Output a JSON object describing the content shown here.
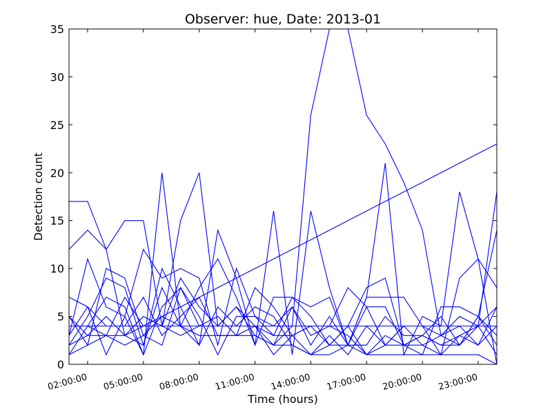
{
  "chart_data": {
    "type": "line",
    "title": "Observer: hue, Date: 2013-01",
    "xlabel": "Time (hours)",
    "ylabel": "Detection count",
    "xlim": [
      1,
      24
    ],
    "ylim": [
      0,
      35
    ],
    "yticks": [
      0,
      5,
      10,
      15,
      20,
      25,
      30,
      35
    ],
    "xticks": [
      {
        "x": 2,
        "label": "02:00:00"
      },
      {
        "x": 5,
        "label": "05:00:00"
      },
      {
        "x": 8,
        "label": "08:00:00"
      },
      {
        "x": 11,
        "label": "11:00:00"
      },
      {
        "x": 14,
        "label": "14:00:00"
      },
      {
        "x": 17,
        "label": "17:00:00"
      },
      {
        "x": 20,
        "label": "20:00:00"
      },
      {
        "x": 23,
        "label": "23:00:00"
      }
    ],
    "line_color": "#0000ff",
    "grid": false,
    "legend": "none",
    "series": [
      {
        "x": [
          1,
          2,
          3,
          4,
          5,
          6,
          7,
          8,
          9,
          10,
          11,
          12,
          13,
          14,
          15,
          16,
          17,
          18,
          19,
          20,
          21,
          22,
          23,
          24
        ],
        "y": [
          17,
          17,
          12,
          15,
          15,
          4,
          15,
          20,
          4,
          6,
          3,
          2,
          4,
          26,
          35,
          35,
          26,
          23,
          19,
          14,
          3,
          5,
          4,
          18
        ]
      },
      {
        "x": [
          1,
          2,
          3,
          4,
          5,
          6,
          7,
          8,
          9,
          10,
          11,
          12,
          13,
          14,
          15,
          16,
          17,
          18,
          19,
          20,
          21,
          22,
          23,
          24
        ],
        "y": [
          12,
          14,
          12,
          3,
          2,
          8,
          4,
          2,
          14,
          9,
          2,
          16,
          1,
          16,
          8,
          2,
          7,
          21,
          1,
          5,
          4,
          18,
          11,
          0
        ]
      },
      {
        "x": [
          1,
          2,
          3,
          4,
          5,
          6,
          7,
          8,
          9,
          10,
          11,
          12,
          13,
          14,
          15,
          16,
          17,
          18,
          19,
          20,
          21,
          22,
          23,
          24
        ],
        "y": [
          7,
          6,
          1,
          5,
          1,
          20,
          4,
          8,
          11,
          7,
          2,
          7,
          7,
          6,
          7,
          2,
          7,
          7,
          7,
          4,
          1,
          9,
          11,
          8
        ]
      },
      {
        "x": [
          1,
          2,
          3,
          4,
          5,
          6,
          7,
          8,
          9,
          10,
          11,
          12,
          13,
          14,
          15,
          16,
          17,
          18,
          19,
          20,
          21,
          22,
          23,
          24
        ],
        "y": [
          3,
          11,
          6,
          5,
          12,
          9,
          10,
          9,
          2,
          10,
          5,
          4,
          6,
          2,
          5,
          2,
          6,
          6,
          2,
          1,
          6,
          6,
          5,
          14
        ]
      },
      {
        "x": [
          1,
          2,
          3,
          4,
          5,
          6,
          7,
          8,
          9,
          10,
          11,
          12,
          13,
          14,
          15,
          16,
          17,
          18,
          19,
          20,
          21,
          22,
          23,
          24
        ],
        "y": [
          5,
          2,
          10,
          9,
          3,
          2,
          8,
          4,
          5,
          3,
          8,
          6,
          3,
          4,
          2,
          4,
          8,
          9,
          2,
          3,
          2,
          3,
          2,
          6
        ]
      },
      {
        "x": [
          1,
          2,
          3,
          4,
          5,
          6,
          7,
          8,
          9,
          10,
          11,
          12,
          13,
          14,
          15,
          16,
          17,
          18,
          19,
          20,
          21,
          22,
          23,
          24
        ],
        "y": [
          2,
          5,
          9,
          8,
          2,
          10,
          6,
          2,
          6,
          4,
          6,
          5,
          2,
          1,
          3,
          1,
          4,
          2,
          4,
          2,
          3,
          2,
          4,
          6
        ]
      },
      {
        "x": [
          1,
          2,
          3,
          4,
          5,
          6,
          7,
          8,
          9,
          10,
          11,
          12,
          13,
          14,
          15,
          16,
          17,
          18,
          19,
          20,
          21,
          22,
          23,
          24
        ],
        "y": [
          1,
          4,
          3,
          7,
          4,
          4,
          9,
          6,
          4,
          6,
          4,
          2,
          6,
          3,
          4,
          8,
          6,
          2,
          4,
          4,
          3,
          4,
          2,
          4
        ]
      },
      {
        "x": [
          1,
          2,
          3,
          4,
          5,
          6,
          7,
          8,
          9,
          10,
          11,
          12,
          13,
          14,
          15,
          16,
          17,
          18,
          19,
          20,
          21,
          22,
          23,
          24
        ],
        "y": [
          4,
          4,
          7,
          6,
          1,
          6,
          8,
          5,
          1,
          5,
          5,
          3,
          7,
          5,
          2,
          4,
          1,
          3,
          2,
          3,
          5,
          2,
          5,
          3
        ]
      },
      {
        "x": [
          1,
          2,
          3,
          4,
          5,
          6,
          7,
          8,
          9,
          10,
          11,
          12,
          13,
          14,
          15,
          16,
          17,
          18,
          19,
          20,
          21,
          22,
          23,
          24
        ],
        "y": [
          3,
          6,
          4,
          4,
          7,
          3,
          5,
          7,
          3,
          3,
          4,
          3,
          3,
          1,
          2,
          2,
          2,
          5,
          3,
          3,
          2,
          2,
          5,
          2
        ]
      },
      {
        "x": [
          1,
          2,
          3,
          4,
          5,
          6,
          7,
          8,
          9,
          10,
          11,
          12,
          13,
          14,
          15,
          16,
          17,
          18,
          19,
          20,
          21,
          22,
          23,
          24
        ],
        "y": [
          2,
          3,
          5,
          3,
          5,
          4,
          3,
          4,
          4,
          4,
          4,
          1,
          3,
          4,
          4,
          3,
          1,
          2,
          2,
          2,
          1,
          3,
          4,
          1
        ]
      },
      {
        "x": [
          1,
          2,
          3,
          4,
          5,
          6,
          7,
          8,
          9,
          10,
          11,
          12,
          13,
          14,
          15,
          16,
          17,
          18,
          19,
          20,
          21,
          22,
          23,
          24
        ],
        "y": [
          4,
          4,
          4,
          4,
          4,
          4,
          4,
          4,
          4,
          4,
          4,
          4,
          4,
          4,
          4,
          4,
          4,
          4,
          4,
          4,
          4,
          4,
          4,
          4
        ]
      },
      {
        "x": [
          1,
          2,
          3,
          4,
          5,
          6,
          7,
          8,
          9,
          10,
          11,
          12,
          13,
          14,
          15,
          16,
          17,
          18,
          19,
          20,
          21,
          22,
          23,
          24
        ],
        "y": [
          5,
          3,
          3,
          2,
          3,
          5,
          4,
          3,
          3,
          3,
          3,
          2,
          2,
          1,
          1,
          2,
          1,
          1,
          1,
          1,
          1,
          1,
          1,
          0
        ]
      },
      {
        "x": [
          1,
          2,
          3,
          4,
          5,
          6,
          7,
          8,
          9,
          10,
          11,
          12,
          13,
          14,
          15,
          16,
          17,
          18,
          19,
          20,
          21,
          22,
          23,
          24
        ],
        "y": [
          1,
          2,
          3,
          3,
          4,
          5,
          6,
          7,
          8,
          9,
          10,
          11,
          12,
          13,
          14,
          15,
          16,
          17,
          18,
          19,
          20,
          21,
          22,
          23
        ]
      }
    ]
  }
}
